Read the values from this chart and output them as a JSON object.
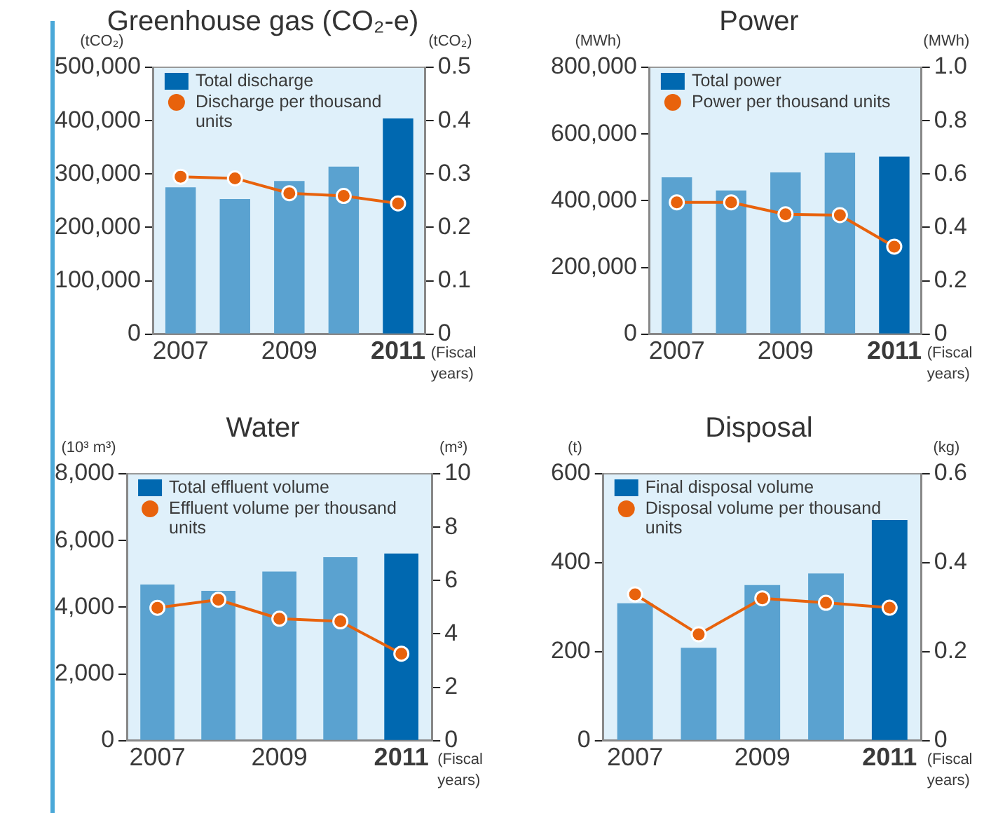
{
  "chart_data": [
    {
      "type": "bar",
      "title": "Greenhouse gas (CO₂-e)",
      "ylabel": "(tCO₂)",
      "y2label": "(tCO₂)",
      "xlabel": "(Fiscal years)",
      "categories": [
        "2007",
        null,
        "2009",
        null,
        "2011"
      ],
      "series": [
        {
          "name": "Total discharge",
          "color": "#0068b0",
          "colors": [
            "#5aa2d0",
            "#5aa2d0",
            "#5aa2d0",
            "#5aa2d0",
            "#0068b0"
          ],
          "values": [
            275000,
            253000,
            287000,
            314000,
            404000
          ]
        },
        {
          "name": "Discharge per thousand units",
          "type": "line",
          "axis": "y2",
          "color": "#e8620c",
          "values": [
            0.295,
            0.292,
            0.264,
            0.259,
            0.245
          ]
        }
      ],
      "ylim": [
        0,
        500000
      ],
      "yticks": [
        0,
        {
          "value": 100000,
          "label": "100,000"
        },
        {
          "value": 200000,
          "label": "200,000"
        },
        {
          "value": 300000,
          "label": "300,000"
        },
        {
          "value": 400000,
          "label": "400,000"
        },
        {
          "value": 500000,
          "label": "500,000"
        }
      ],
      "y2lim": [
        0,
        0.5
      ],
      "y2ticks": [
        0,
        0.1,
        0.2,
        0.3,
        0.4,
        0.5
      ],
      "legend": "top left",
      "marker": "circle"
    },
    {
      "type": "bar",
      "title": "Power",
      "ylabel": "(MWh)",
      "y2label": "(MWh)",
      "xlabel": "(Fiscal years)",
      "categories": [
        "2007",
        null,
        "2009",
        null,
        "2011"
      ],
      "series": [
        {
          "name": "Total power",
          "color": "#0068b0",
          "colors": [
            "#5aa2d0",
            "#5aa2d0",
            "#5aa2d0",
            "#5aa2d0",
            "#0068b0"
          ],
          "values": [
            470000,
            431000,
            485000,
            544000,
            532000
          ]
        },
        {
          "name": "Power per thousand units",
          "type": "line",
          "axis": "y2",
          "color": "#e8620c",
          "values": [
            0.494,
            0.494,
            0.449,
            0.446,
            0.328
          ]
        }
      ],
      "ylim": [
        0,
        800000
      ],
      "yticks": [
        0,
        {
          "value": 200000,
          "label": "200,000"
        },
        {
          "value": 400000,
          "label": "400,000"
        },
        {
          "value": 600000,
          "label": "600,000"
        },
        {
          "value": 800000,
          "label": "800,000"
        }
      ],
      "y2lim": [
        0,
        1
      ],
      "y2ticks": [
        0,
        0.2,
        0.4,
        0.6,
        0.8,
        {
          "value": 1,
          "label": "1.0"
        }
      ],
      "legend": "top left",
      "marker": "circle"
    },
    {
      "type": "bar",
      "title": "Water",
      "ylabel": "(10³ m³)",
      "y2label": "(m³)",
      "xlabel": "(Fiscal years)",
      "categories": [
        "2007",
        null,
        "2009",
        null,
        "2011"
      ],
      "series": [
        {
          "name": "Total effluent volume",
          "color": "#0068b0",
          "colors": [
            "#5aa2d0",
            "#5aa2d0",
            "#5aa2d0",
            "#5aa2d0",
            "#0068b0"
          ],
          "values": [
            4680,
            4490,
            5070,
            5500,
            5610
          ]
        },
        {
          "name": "Effluent volume per thousand units",
          "type": "line",
          "axis": "y2",
          "color": "#e8620c",
          "values": [
            4.98,
            5.28,
            4.57,
            4.47,
            3.26
          ]
        }
      ],
      "ylim": [
        0,
        8000
      ],
      "yticks": [
        0,
        {
          "value": 2000,
          "label": "2,000"
        },
        {
          "value": 4000,
          "label": "4,000"
        },
        {
          "value": 6000,
          "label": "6,000"
        },
        {
          "value": 8000,
          "label": "8,000"
        }
      ],
      "y2lim": [
        0,
        10
      ],
      "y2ticks": [
        0,
        2,
        4,
        6,
        8,
        10
      ],
      "legend": "top left",
      "marker": "circle"
    },
    {
      "type": "bar",
      "title": "Disposal",
      "ylabel": "(t)",
      "y2label": "(kg)",
      "xlabel": "(Fiscal years)",
      "categories": [
        "2007",
        null,
        "2009",
        null,
        "2011"
      ],
      "series": [
        {
          "name": "Final disposal volume",
          "color": "#0068b0",
          "colors": [
            "#5aa2d0",
            "#5aa2d0",
            "#5aa2d0",
            "#5aa2d0",
            "#0068b0"
          ],
          "values": [
            309,
            209,
            350,
            376,
            496
          ]
        },
        {
          "name": "Disposal volume per thousand units",
          "type": "line",
          "axis": "y2",
          "color": "#e8620c",
          "values": [
            0.329,
            0.239,
            0.32,
            0.31,
            0.299
          ]
        }
      ],
      "ylim": [
        0,
        600
      ],
      "yticks": [
        0,
        200,
        400,
        600
      ],
      "y2lim": [
        0,
        0.6
      ],
      "y2ticks": [
        0,
        0.2,
        0.4,
        0.6
      ],
      "legend": "top left",
      "marker": "circle"
    }
  ]
}
